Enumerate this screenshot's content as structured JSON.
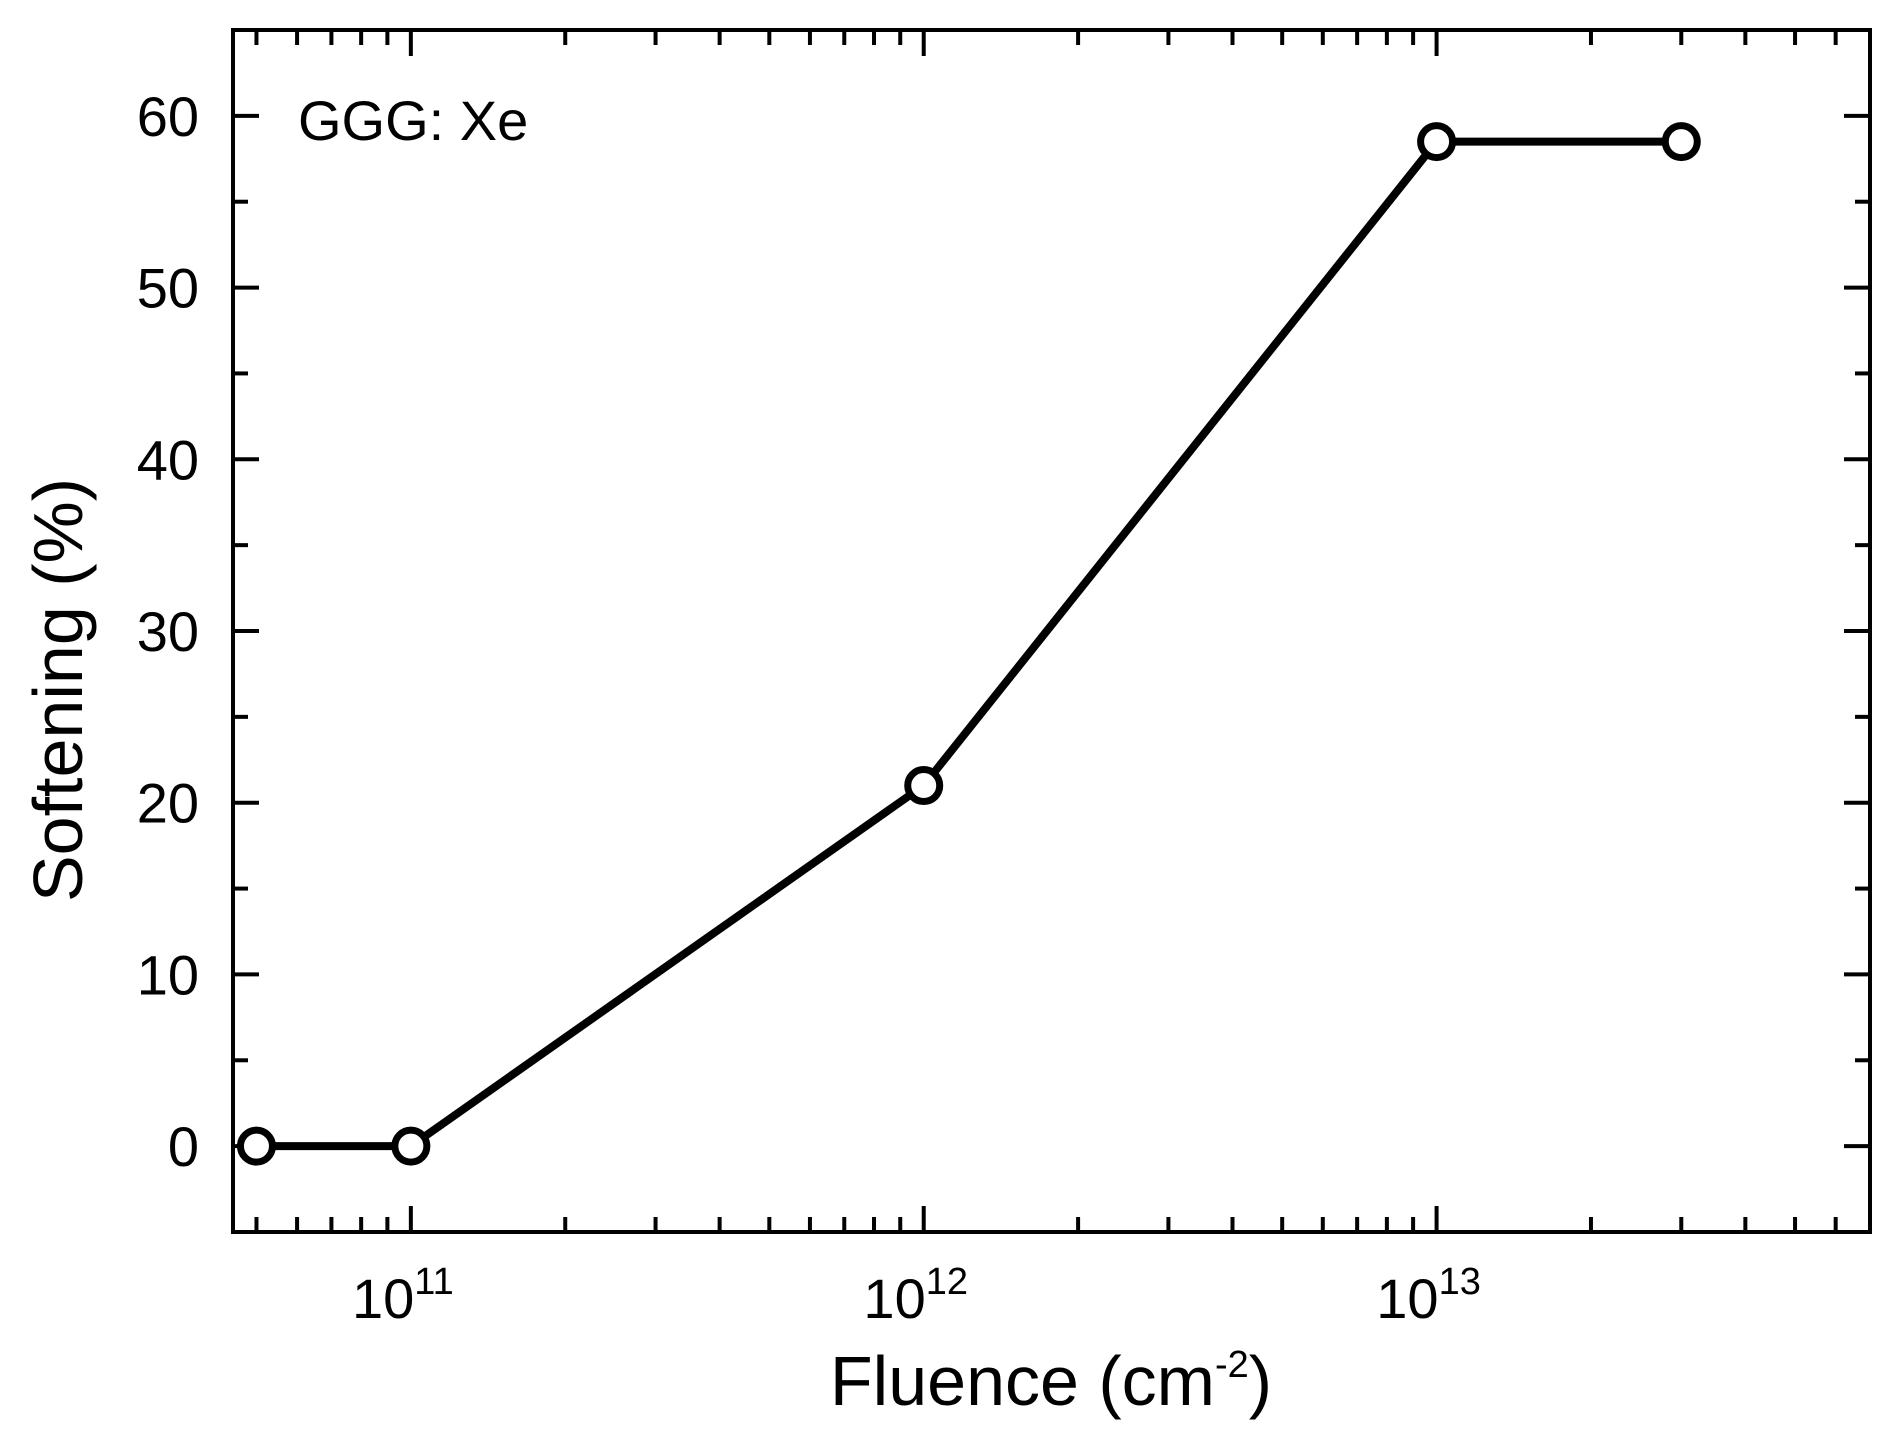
{
  "chart_data": {
    "type": "line",
    "annotation": "GGG: Xe",
    "xlabel": {
      "base": "Fluence (cm",
      "sup": "-2",
      "close": ")"
    },
    "ylabel": "Softening (%)",
    "xscale": "log",
    "xlim": [
      45000000000,
      70000000000000
    ],
    "ylim": [
      -5,
      65
    ],
    "xticks": [
      {
        "value": 100000000000,
        "base": "10",
        "exp": "11"
      },
      {
        "value": 1000000000000,
        "base": "10",
        "exp": "12"
      },
      {
        "value": 10000000000000,
        "base": "10",
        "exp": "13"
      }
    ],
    "yticks": [
      0,
      10,
      20,
      30,
      40,
      50,
      60
    ],
    "series": [
      {
        "x": [
          50000000000,
          100000000000,
          1000000000000,
          10000000000000,
          30000000000000
        ],
        "y": [
          0,
          0,
          21,
          58.5,
          58.5
        ]
      }
    ],
    "grid": false,
    "line_color": "#000000",
    "marker": "open-circle"
  }
}
